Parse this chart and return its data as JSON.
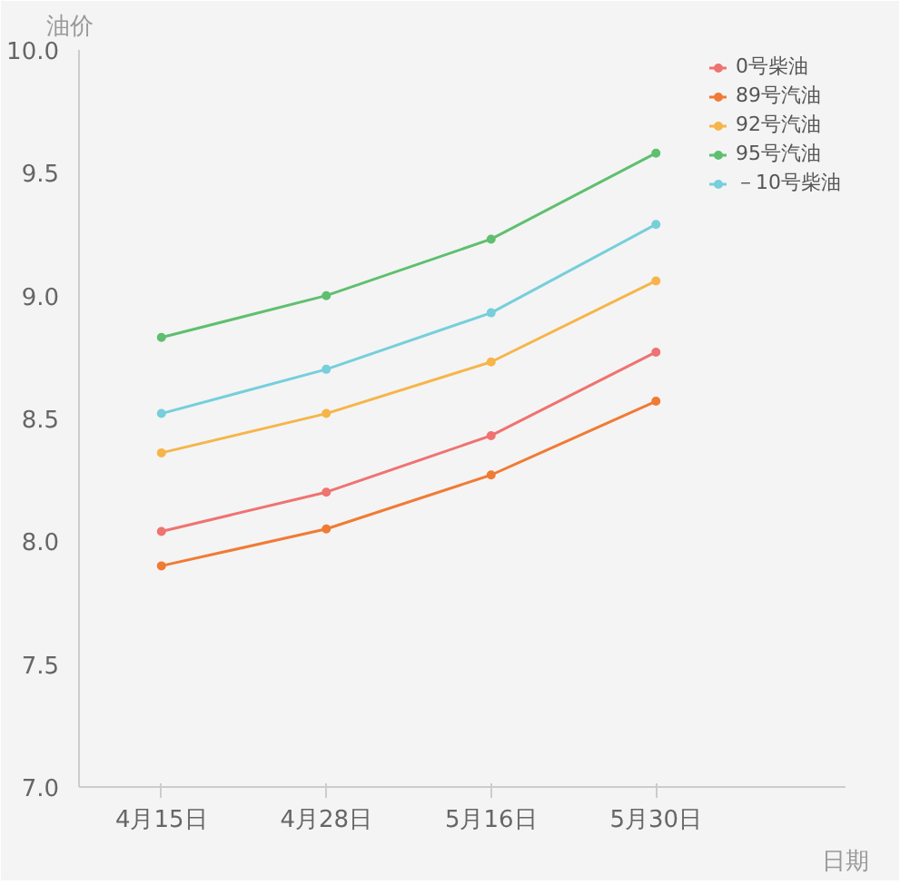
{
  "chart_data": {
    "type": "line",
    "xlabel": "日期",
    "ylabel": "油价",
    "categories": [
      "4月15日",
      "4月28日",
      "5月16日",
      "5月30日"
    ],
    "series": [
      {
        "name": "0号柴油",
        "color": "#ef7371",
        "values": [
          8.04,
          8.2,
          8.43,
          8.77
        ]
      },
      {
        "name": "89号汽油",
        "color": "#f07b35",
        "values": [
          7.9,
          8.05,
          8.27,
          8.57
        ]
      },
      {
        "name": "92号汽油",
        "color": "#f6b54a",
        "values": [
          8.36,
          8.52,
          8.73,
          9.06
        ]
      },
      {
        "name": "95号汽油",
        "color": "#5fbf6f",
        "values": [
          8.83,
          9.0,
          9.23,
          9.58
        ]
      },
      {
        "name": "－10号柴油",
        "color": "#76cfdb",
        "values": [
          8.52,
          8.7,
          8.93,
          9.29
        ]
      }
    ],
    "ylim": [
      7.0,
      10.0
    ],
    "yticks": [
      {
        "value": 7.0,
        "label": "7.0"
      },
      {
        "value": 7.5,
        "label": "7.5"
      },
      {
        "value": 8.0,
        "label": "8.0"
      },
      {
        "value": 8.5,
        "label": "8.5"
      },
      {
        "value": 9.0,
        "label": "9.0"
      },
      {
        "value": 9.5,
        "label": "9.5"
      },
      {
        "value": 10.0,
        "label": "10.0"
      }
    ],
    "grid": false,
    "legend": "top right",
    "marker": "circle",
    "line_style": "solid"
  }
}
